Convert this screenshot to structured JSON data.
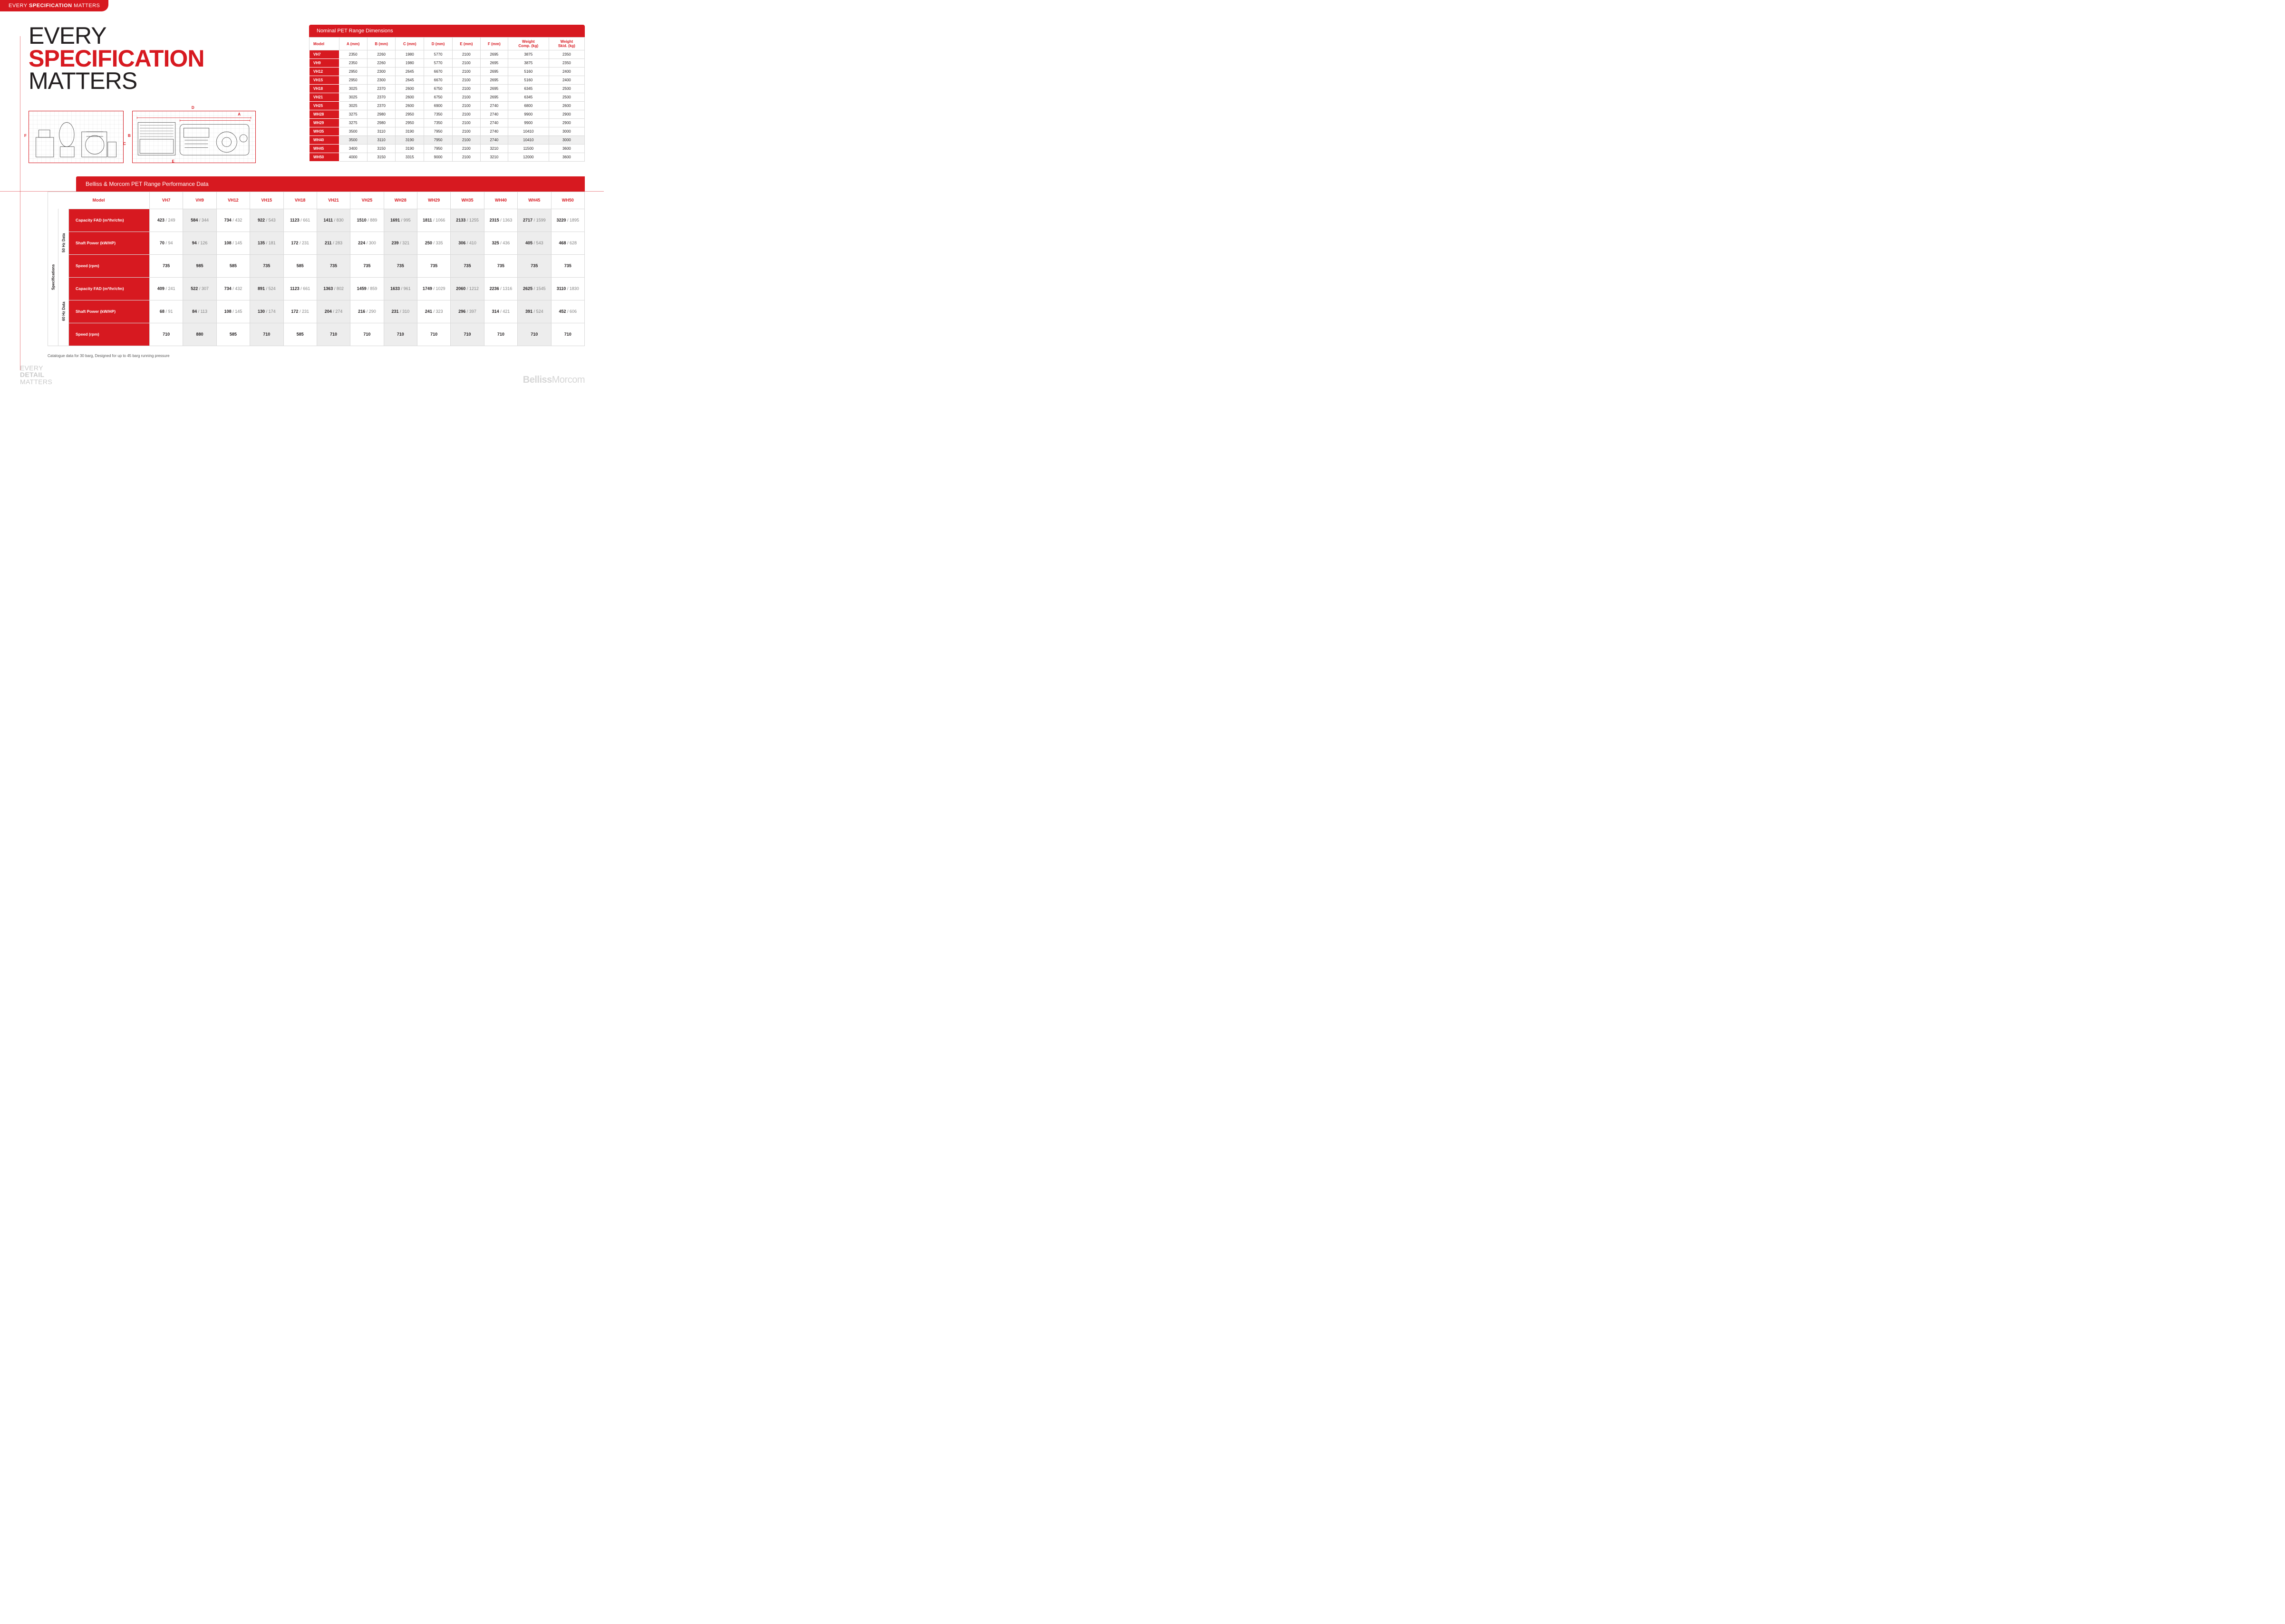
{
  "brand": {
    "tag_light": "EVERY ",
    "tag_bold": "SPECIFICATION",
    "tag_light2": " MATTERS"
  },
  "hero": {
    "l1": "EVERY",
    "l2": "SPECIFICATION",
    "l3": "MATTERS"
  },
  "colors": {
    "accent": "#d71920",
    "text": "#231f20",
    "grey": "#808080",
    "stripe": "#ededed"
  },
  "dim_letters": [
    "A",
    "B",
    "C",
    "D",
    "E",
    "F"
  ],
  "dims": {
    "title": "Nominal PET Range Dimensions",
    "headers": [
      "Model",
      "A (mm)",
      "B (mm)",
      "C (mm)",
      "D (mm)",
      "E (mm)",
      "F (mm)",
      "Weight Comp. (kg)",
      "Weight Skid. (kg)"
    ],
    "rows": [
      [
        "VH7",
        "2350",
        "2260",
        "1980",
        "5770",
        "2100",
        "2695",
        "3875",
        "2350"
      ],
      [
        "VH9",
        "2350",
        "2260",
        "1980",
        "5770",
        "2100",
        "2695",
        "3875",
        "2350"
      ],
      [
        "VH12",
        "2950",
        "2300",
        "2645",
        "6670",
        "2100",
        "2695",
        "5160",
        "2400"
      ],
      [
        "VH15",
        "2950",
        "2300",
        "2645",
        "6670",
        "2100",
        "2695",
        "5160",
        "2400"
      ],
      [
        "VH18",
        "3025",
        "2370",
        "2600",
        "6750",
        "2100",
        "2695",
        "6345",
        "2500"
      ],
      [
        "VH21",
        "3025",
        "2370",
        "2600",
        "6750",
        "2100",
        "2695",
        "6345",
        "2500"
      ],
      [
        "VH25",
        "3025",
        "2370",
        "2600",
        "6900",
        "2100",
        "2740",
        "6800",
        "2600"
      ],
      [
        "WH28",
        "3275",
        "2980",
        "2950",
        "7350",
        "2100",
        "2740",
        "9900",
        "2900"
      ],
      [
        "WH29",
        "3275",
        "2980",
        "2950",
        "7350",
        "2100",
        "2740",
        "9900",
        "2900"
      ],
      [
        "WH35",
        "3500",
        "3110",
        "3190",
        "7950",
        "2100",
        "2740",
        "10410",
        "3000"
      ],
      [
        "WH40",
        "3500",
        "3110",
        "3190",
        "7950",
        "2100",
        "2740",
        "10410",
        "3000"
      ],
      [
        "WH45",
        "3400",
        "3150",
        "3190",
        "7950",
        "2100",
        "3210",
        "11500",
        "3600"
      ],
      [
        "WH50",
        "4000",
        "3150",
        "3315",
        "9000",
        "2100",
        "3210",
        "12000",
        "3600"
      ]
    ],
    "highlight_index": 10
  },
  "perf": {
    "title": "Belliss & Morcom PET Range Performance Data",
    "model_hd": "Model",
    "spec_hd": "Specifications",
    "hz50_hd": "50 Hz Data",
    "hz60_hd": "60 Hz Data",
    "models": [
      "VH7",
      "VH9",
      "VH12",
      "VH15",
      "VH18",
      "VH21",
      "VH25",
      "WH28",
      "WH29",
      "WH35",
      "WH40",
      "WH45",
      "WH50"
    ],
    "rowlabels": {
      "cap": "Capacity FAD (m³/hr/cfm)",
      "pow": "Shaft Power (kW/HP)",
      "spd": "Speed (rpm)"
    },
    "hz50": {
      "cap": [
        [
          "423",
          "249"
        ],
        [
          "584",
          "344"
        ],
        [
          "734",
          "432"
        ],
        [
          "922",
          "543"
        ],
        [
          "1123",
          "661"
        ],
        [
          "1411",
          "830"
        ],
        [
          "1510",
          "889"
        ],
        [
          "1691",
          "995"
        ],
        [
          "1811",
          "1066"
        ],
        [
          "2133",
          "1255"
        ],
        [
          "2315",
          "1363"
        ],
        [
          "2717",
          "1599"
        ],
        [
          "3220",
          "1895"
        ]
      ],
      "pow": [
        [
          "70",
          "94"
        ],
        [
          "94",
          "126"
        ],
        [
          "108",
          "145"
        ],
        [
          "135",
          "181"
        ],
        [
          "172",
          "231"
        ],
        [
          "211",
          "283"
        ],
        [
          "224",
          "300"
        ],
        [
          "239",
          "321"
        ],
        [
          "250",
          "335"
        ],
        [
          "306",
          "410"
        ],
        [
          "325",
          "436"
        ],
        [
          "405",
          "543"
        ],
        [
          "468",
          "628"
        ]
      ],
      "spd": [
        "735",
        "985",
        "585",
        "735",
        "585",
        "735",
        "735",
        "735",
        "735",
        "735",
        "735",
        "735",
        "735"
      ]
    },
    "hz60": {
      "cap": [
        [
          "409",
          "241"
        ],
        [
          "522",
          "307"
        ],
        [
          "734",
          "432"
        ],
        [
          "891",
          "524"
        ],
        [
          "1123",
          "661"
        ],
        [
          "1363",
          "802"
        ],
        [
          "1459",
          "859"
        ],
        [
          "1633",
          "961"
        ],
        [
          "1749",
          "1029"
        ],
        [
          "2060",
          "1212"
        ],
        [
          "2236",
          "1316"
        ],
        [
          "2625",
          "1545"
        ],
        [
          "3110",
          "1830"
        ]
      ],
      "pow": [
        [
          "68",
          "91"
        ],
        [
          "84",
          "113"
        ],
        [
          "108",
          "145"
        ],
        [
          "130",
          "174"
        ],
        [
          "172",
          "231"
        ],
        [
          "204",
          "274"
        ],
        [
          "216",
          "290"
        ],
        [
          "231",
          "310"
        ],
        [
          "241",
          "323"
        ],
        [
          "296",
          "397"
        ],
        [
          "314",
          "421"
        ],
        [
          "391",
          "524"
        ],
        [
          "452",
          "606"
        ]
      ],
      "spd": [
        "710",
        "880",
        "585",
        "710",
        "585",
        "710",
        "710",
        "710",
        "710",
        "710",
        "710",
        "710",
        "710"
      ]
    }
  },
  "footnote": "Catalogue data for 30 barg,  Designed for up to 45 barg running pressure",
  "footer": {
    "slogan_l1": "EVERY",
    "slogan_l2": "DETAIL",
    "slogan_l3": "MATTERS",
    "logo_a": "Belliss",
    "logo_b": "Morcom"
  }
}
